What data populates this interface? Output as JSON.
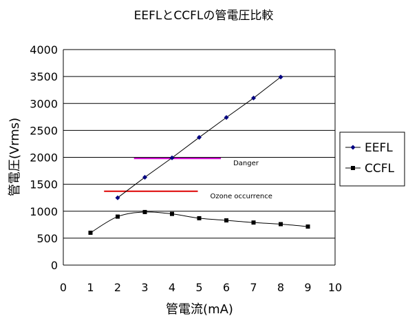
{
  "chart_data": {
    "type": "line",
    "title": "EEFLとCCFLの管電圧比較",
    "xlabel": "管電流(mA)",
    "ylabel": "管電圧(Vrms)",
    "xlim": [
      0,
      10
    ],
    "ylim": [
      0,
      4000
    ],
    "x_ticks": [
      "0",
      "1",
      "2",
      "3",
      "4",
      "5",
      "6",
      "7",
      "8",
      "9",
      "10"
    ],
    "y_ticks": [
      "0",
      "500",
      "1000",
      "1500",
      "2000",
      "2500",
      "3000",
      "3500",
      "4000"
    ],
    "grid": "horizontal",
    "legend_position": "right",
    "series": [
      {
        "name": "EEFL",
        "marker": "diamond",
        "color": "#000080",
        "line_color": "#000000",
        "smooth": false,
        "x": [
          2,
          3,
          4,
          5,
          6,
          7,
          8
        ],
        "values": [
          1250,
          1630,
          1990,
          2370,
          2740,
          3100,
          3490
        ]
      },
      {
        "name": "CCFL",
        "marker": "square",
        "color": "#000000",
        "line_color": "#000000",
        "smooth": true,
        "x": [
          1,
          2,
          3,
          4,
          5,
          6,
          7,
          8,
          9
        ],
        "values": [
          600,
          900,
          985,
          950,
          870,
          830,
          790,
          760,
          715
        ]
      }
    ],
    "reference_lines": [
      {
        "label": "Danger",
        "y": 1980,
        "x_start": 2.6,
        "x_end": 5.8,
        "color": "#cc00cc"
      },
      {
        "label": "Ozone occurrence",
        "y": 1370,
        "x_start": 1.5,
        "x_end": 4.95,
        "color": "#dd0000"
      }
    ]
  }
}
